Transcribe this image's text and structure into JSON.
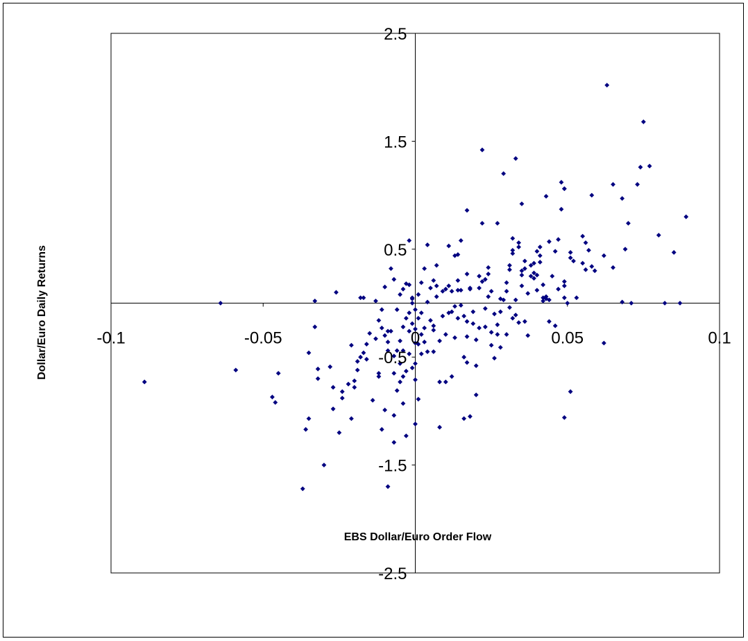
{
  "chart_data": {
    "type": "scatter",
    "title": "",
    "xlabel": "EBS Dollar/Euro Order Flow",
    "ylabel": "Dollar/Euro Daily Returns",
    "xlim": [
      -0.1,
      0.1
    ],
    "ylim": [
      -2.5,
      2.5
    ],
    "x_ticks": [
      "-0.1",
      "-0.05",
      "0",
      "0.05",
      "0.1"
    ],
    "y_ticks": [
      "2.5",
      "1.5",
      "0.5",
      "-0.5",
      "-1.5",
      "-2.5"
    ],
    "grid": false,
    "legend": false,
    "marker": "diamond",
    "marker_color": "#000080",
    "series": [
      {
        "points": [
          [
            -0.089,
            -0.73
          ],
          [
            -0.064,
            0.0
          ],
          [
            -0.059,
            -0.62
          ],
          [
            -0.047,
            -0.87
          ],
          [
            -0.046,
            -0.92
          ],
          [
            -0.045,
            -0.65
          ],
          [
            -0.037,
            -1.72
          ],
          [
            -0.036,
            -1.17
          ],
          [
            -0.035,
            -1.07
          ],
          [
            -0.035,
            -0.46
          ],
          [
            -0.033,
            -0.22
          ],
          [
            -0.033,
            0.02
          ],
          [
            -0.032,
            -0.61
          ],
          [
            -0.032,
            -0.7
          ],
          [
            -0.03,
            -1.5
          ],
          [
            -0.028,
            -0.59
          ],
          [
            -0.027,
            -0.98
          ],
          [
            -0.027,
            -0.78
          ],
          [
            -0.026,
            0.1
          ],
          [
            -0.025,
            -1.2
          ],
          [
            -0.024,
            -0.82
          ],
          [
            -0.024,
            -0.88
          ],
          [
            -0.022,
            -0.75
          ],
          [
            -0.021,
            -0.39
          ],
          [
            -0.021,
            -1.07
          ],
          [
            -0.02,
            -0.72
          ],
          [
            -0.02,
            -0.78
          ],
          [
            -0.019,
            -0.54
          ],
          [
            -0.019,
            -0.62
          ],
          [
            -0.018,
            0.05
          ],
          [
            -0.018,
            -0.5
          ],
          [
            -0.017,
            0.05
          ],
          [
            -0.017,
            -0.46
          ],
          [
            -0.016,
            -0.38
          ],
          [
            -0.016,
            -0.52
          ],
          [
            -0.015,
            -0.28
          ],
          [
            -0.014,
            -0.9
          ],
          [
            -0.013,
            0.02
          ],
          [
            -0.013,
            -0.33
          ],
          [
            -0.012,
            -0.16
          ],
          [
            -0.012,
            -0.65
          ],
          [
            -0.012,
            -0.68
          ],
          [
            -0.011,
            -1.17
          ],
          [
            -0.011,
            -0.06
          ],
          [
            -0.011,
            -0.23
          ],
          [
            -0.01,
            -0.99
          ],
          [
            -0.01,
            0.15
          ],
          [
            -0.01,
            -0.3
          ],
          [
            -0.009,
            -1.7
          ],
          [
            -0.009,
            -0.36
          ],
          [
            -0.009,
            -0.44
          ],
          [
            -0.009,
            -0.26
          ],
          [
            -0.008,
            -0.26
          ],
          [
            -0.008,
            0.32
          ],
          [
            -0.007,
            -0.65
          ],
          [
            -0.007,
            0.22
          ],
          [
            -0.007,
            -1.29
          ],
          [
            -0.007,
            -0.49
          ],
          [
            -0.007,
            -1.04
          ],
          [
            -0.006,
            -0.06
          ],
          [
            -0.006,
            -0.44
          ],
          [
            -0.006,
            -0.81
          ],
          [
            -0.005,
            0.08
          ],
          [
            -0.005,
            -0.35
          ],
          [
            -0.005,
            -0.56
          ],
          [
            -0.005,
            -0.73
          ],
          [
            -0.004,
            0.13
          ],
          [
            -0.004,
            -0.22
          ],
          [
            -0.004,
            -0.44
          ],
          [
            -0.004,
            -0.68
          ],
          [
            -0.004,
            -0.93
          ],
          [
            -0.003,
            0.18
          ],
          [
            -0.003,
            -0.14
          ],
          [
            -0.003,
            -1.23
          ],
          [
            -0.003,
            -0.63
          ],
          [
            -0.002,
            0.17
          ],
          [
            -0.002,
            -0.26
          ],
          [
            -0.002,
            -0.09
          ],
          [
            -0.002,
            -0.47
          ],
          [
            -0.002,
            0.58
          ],
          [
            -0.001,
            0.0
          ],
          [
            -0.001,
            -0.6
          ],
          [
            -0.001,
            -0.19
          ],
          [
            -0.001,
            0.04
          ],
          [
            -0.001,
            0.05
          ],
          [
            0.0,
            -0.06
          ],
          [
            0.0,
            -0.24
          ],
          [
            0.0,
            -0.37
          ],
          [
            0.0,
            -1.12
          ],
          [
            0.0,
            -0.71
          ],
          [
            0.0,
            -0.56
          ],
          [
            0.001,
            0.08
          ],
          [
            0.001,
            -0.38
          ],
          [
            0.001,
            -0.89
          ],
          [
            0.001,
            -0.14
          ],
          [
            0.002,
            -0.29
          ],
          [
            0.002,
            -0.09
          ],
          [
            0.002,
            -0.47
          ],
          [
            0.002,
            0.19
          ],
          [
            0.003,
            0.32
          ],
          [
            0.003,
            -0.36
          ],
          [
            0.003,
            -0.23
          ],
          [
            0.004,
            0.54
          ],
          [
            0.004,
            0.01
          ],
          [
            0.004,
            -0.45
          ],
          [
            0.005,
            0.14
          ],
          [
            0.005,
            -0.16
          ],
          [
            0.006,
            0.21
          ],
          [
            0.006,
            -0.21
          ],
          [
            0.006,
            -0.45
          ],
          [
            0.006,
            -0.25
          ],
          [
            0.007,
            0.16
          ],
          [
            0.007,
            0.35
          ],
          [
            0.007,
            0.06
          ],
          [
            0.008,
            -0.35
          ],
          [
            0.008,
            -0.73
          ],
          [
            0.008,
            -1.15
          ],
          [
            0.009,
            0.11
          ],
          [
            0.009,
            -0.12
          ],
          [
            0.01,
            -0.73
          ],
          [
            0.01,
            -0.29
          ],
          [
            0.01,
            0.13
          ],
          [
            0.011,
            0.53
          ],
          [
            0.011,
            0.16
          ],
          [
            0.011,
            -0.09
          ],
          [
            0.012,
            0.11
          ],
          [
            0.012,
            -0.08
          ],
          [
            0.012,
            -0.68
          ],
          [
            0.013,
            -0.03
          ],
          [
            0.013,
            0.44
          ],
          [
            0.013,
            -0.32
          ],
          [
            0.014,
            0.45
          ],
          [
            0.014,
            0.21
          ],
          [
            0.014,
            0.12
          ],
          [
            0.014,
            -0.14
          ],
          [
            0.015,
            0.58
          ],
          [
            0.015,
            0.12
          ],
          [
            0.015,
            -0.02
          ],
          [
            0.016,
            -0.12
          ],
          [
            0.016,
            -1.07
          ],
          [
            0.016,
            -0.5
          ],
          [
            0.017,
            0.86
          ],
          [
            0.017,
            0.27
          ],
          [
            0.017,
            -0.17
          ],
          [
            0.017,
            -0.31
          ],
          [
            0.017,
            -0.55
          ],
          [
            0.018,
            0.14
          ],
          [
            0.018,
            -1.05
          ],
          [
            0.018,
            0.13
          ],
          [
            0.019,
            -0.08
          ],
          [
            0.019,
            -0.19
          ],
          [
            0.02,
            -0.34
          ],
          [
            0.02,
            -0.85
          ],
          [
            0.02,
            -0.58
          ],
          [
            0.021,
            0.25
          ],
          [
            0.021,
            0.14
          ],
          [
            0.021,
            -0.23
          ],
          [
            0.022,
            0.2
          ],
          [
            0.022,
            1.42
          ],
          [
            0.022,
            0.74
          ],
          [
            0.023,
            0.22
          ],
          [
            0.023,
            -0.22
          ],
          [
            0.023,
            -0.05
          ],
          [
            0.024,
            0.33
          ],
          [
            0.024,
            0.06
          ],
          [
            0.024,
            0.27
          ],
          [
            0.025,
            0.11
          ],
          [
            0.025,
            -0.27
          ],
          [
            0.025,
            -0.39
          ],
          [
            0.026,
            -0.1
          ],
          [
            0.026,
            -0.51
          ],
          [
            0.027,
            0.74
          ],
          [
            0.027,
            -0.2
          ],
          [
            0.027,
            -0.29
          ],
          [
            0.028,
            0.04
          ],
          [
            0.028,
            -0.41
          ],
          [
            0.028,
            -0.08
          ],
          [
            0.029,
            0.03
          ],
          [
            0.029,
            1.2
          ],
          [
            0.03,
            0.19
          ],
          [
            0.03,
            0.11
          ],
          [
            0.03,
            -0.29
          ],
          [
            0.031,
            0.35
          ],
          [
            0.031,
            -0.04
          ],
          [
            0.031,
            0.31
          ],
          [
            0.032,
            0.46
          ],
          [
            0.032,
            0.6
          ],
          [
            0.032,
            0.49
          ],
          [
            0.032,
            -0.14
          ],
          [
            0.033,
            1.34
          ],
          [
            0.033,
            0.03
          ],
          [
            0.033,
            -0.11
          ],
          [
            0.034,
            -0.18
          ],
          [
            0.034,
            0.56
          ],
          [
            0.034,
            0.52
          ],
          [
            0.035,
            0.16
          ],
          [
            0.035,
            0.3
          ],
          [
            0.035,
            0.26
          ],
          [
            0.035,
            0.92
          ],
          [
            0.036,
            -0.17
          ],
          [
            0.036,
            0.39
          ],
          [
            0.036,
            0.32
          ],
          [
            0.037,
            0.09
          ],
          [
            0.037,
            -0.3
          ],
          [
            0.038,
            0.35
          ],
          [
            0.038,
            0.25
          ],
          [
            0.039,
            0.28
          ],
          [
            0.039,
            0.23
          ],
          [
            0.039,
            0.37
          ],
          [
            0.04,
            0.48
          ],
          [
            0.04,
            0.26
          ],
          [
            0.04,
            0.12
          ],
          [
            0.041,
            0.52
          ],
          [
            0.041,
            0.44
          ],
          [
            0.041,
            0.38
          ],
          [
            0.042,
            0.17
          ],
          [
            0.042,
            0.05
          ],
          [
            0.042,
            0.02
          ],
          [
            0.043,
            0.06
          ],
          [
            0.043,
            0.99
          ],
          [
            0.043,
            0.04
          ],
          [
            0.044,
            0.03
          ],
          [
            0.044,
            -0.17
          ],
          [
            0.044,
            0.57
          ],
          [
            0.045,
            0.25
          ],
          [
            0.046,
            -0.21
          ],
          [
            0.046,
            0.48
          ],
          [
            0.047,
            0.13
          ],
          [
            0.047,
            0.59
          ],
          [
            0.048,
            0.87
          ],
          [
            0.048,
            1.12
          ],
          [
            0.049,
            1.06
          ],
          [
            0.049,
            0.05
          ],
          [
            0.049,
            0.16
          ],
          [
            0.049,
            1.06
          ],
          [
            0.049,
            -1.06
          ],
          [
            0.049,
            0.2
          ],
          [
            0.05,
            0.0
          ],
          [
            0.051,
            -0.82
          ],
          [
            0.051,
            0.47
          ],
          [
            0.051,
            0.42
          ],
          [
            0.052,
            0.39
          ],
          [
            0.053,
            0.05
          ],
          [
            0.055,
            0.37
          ],
          [
            0.055,
            0.62
          ],
          [
            0.056,
            0.31
          ],
          [
            0.056,
            0.56
          ],
          [
            0.057,
            0.49
          ],
          [
            0.058,
            0.34
          ],
          [
            0.058,
            1.0
          ],
          [
            0.059,
            0.3
          ],
          [
            0.062,
            0.44
          ],
          [
            0.062,
            -0.37
          ],
          [
            0.063,
            2.02
          ],
          [
            0.065,
            1.1
          ],
          [
            0.065,
            0.33
          ],
          [
            0.068,
            0.97
          ],
          [
            0.068,
            0.01
          ],
          [
            0.069,
            0.5
          ],
          [
            0.07,
            0.74
          ],
          [
            0.071,
            0.0
          ],
          [
            0.073,
            1.1
          ],
          [
            0.074,
            1.26
          ],
          [
            0.075,
            1.68
          ],
          [
            0.077,
            1.27
          ],
          [
            0.08,
            0.63
          ],
          [
            0.082,
            0.0
          ],
          [
            0.085,
            0.47
          ],
          [
            0.087,
            0.0
          ],
          [
            0.089,
            0.8
          ]
        ]
      }
    ]
  }
}
